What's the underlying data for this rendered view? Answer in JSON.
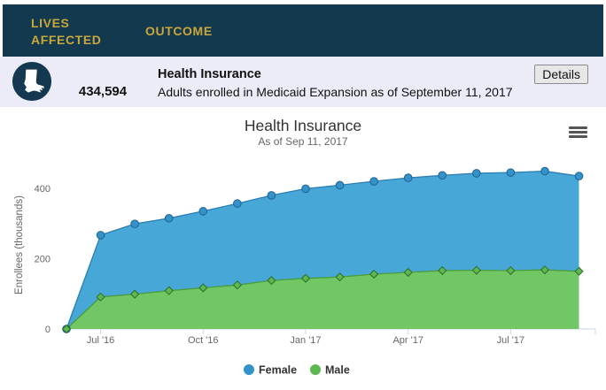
{
  "header": {
    "bg_color": "#13394f",
    "text_color": "#c9a73a",
    "tabs": [
      {
        "label": "LIVES AFFECTED"
      },
      {
        "label": "OUTCOME"
      }
    ]
  },
  "summary": {
    "bg_color": "#ebecf7",
    "value": "434,594",
    "title": "Health Insurance",
    "description": "Adults enrolled in Medicaid Expansion as of September 11, 2017",
    "details_label": "Details",
    "icon": "louisiana-state-icon",
    "icon_bg": "#14384f"
  },
  "chart_data": {
    "type": "area",
    "stacked": true,
    "title": "Health Insurance",
    "subtitle": "As of Sep 11, 2017",
    "ylabel": "Enrollees (thousands)",
    "yticks": [
      0,
      200,
      400
    ],
    "ylim": [
      0,
      480
    ],
    "grid": false,
    "categories": [
      "Jun '16",
      "Jul '16",
      "Aug '16",
      "Sep '16",
      "Oct '16",
      "Nov '16",
      "Dec '16",
      "Jan '17",
      "Feb '17",
      "Mar '17",
      "Apr '17",
      "May '17",
      "Jun '17",
      "Jul '17",
      "Aug '17",
      "Sep '17"
    ],
    "xticks": [
      {
        "index": 1,
        "label": "Jul '16"
      },
      {
        "index": 4,
        "label": "Oct '16"
      },
      {
        "index": 7,
        "label": "Jan '17"
      },
      {
        "index": 10,
        "label": "Apr '17"
      },
      {
        "index": 13,
        "label": "Jul '17"
      }
    ],
    "series": [
      {
        "name": "Female",
        "marker": "circle",
        "area_color": "#47a8d8",
        "line_color": "#2b7db2",
        "marker_fill": "#3492cb",
        "marker_stroke": "#205f8d",
        "values": [
          0,
          176,
          200,
          206,
          218,
          232,
          242,
          255,
          261,
          264,
          269,
          271,
          276,
          279,
          281,
          271
        ]
      },
      {
        "name": "Male",
        "marker": "diamond",
        "area_color": "#72c765",
        "line_color": "#4a9c3d",
        "marker_fill": "#5eb852",
        "marker_stroke": "#2f6e27",
        "values": [
          0,
          91,
          99,
          109,
          117,
          125,
          138,
          144,
          148,
          156,
          161,
          166,
          167,
          166,
          168,
          164
        ]
      }
    ],
    "legend": {
      "position": "bottom",
      "items": [
        "Female",
        "Male"
      ]
    },
    "menu_icon": "hamburger-menu-icon",
    "axis_color": "#ccd6eb",
    "label_color": "#666666",
    "title_color": "#333333",
    "subtitle_color": "#666666"
  }
}
